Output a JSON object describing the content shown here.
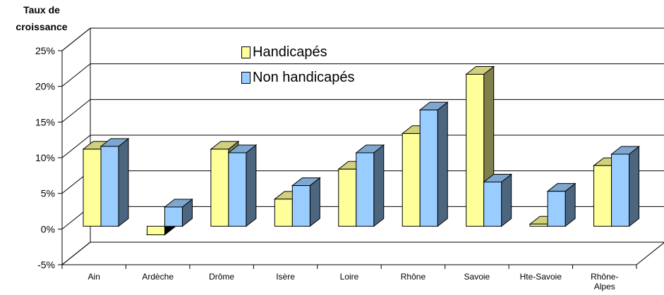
{
  "chart_data": {
    "type": "bar",
    "ylabel": "Taux de croissance",
    "ylim": [
      -5,
      25
    ],
    "yticks": [
      "-5%",
      "0%",
      "5%",
      "10%",
      "15%",
      "20%",
      "25%"
    ],
    "categories": [
      "Ain",
      "Ardèche",
      "Drôme",
      "Isère",
      "Loire",
      "Rhône",
      "Savoie",
      "Hte-Savoie",
      "Rhône-Alpes"
    ],
    "series": [
      {
        "name": "Handicapés",
        "values": [
          10.8,
          -1.2,
          10.8,
          3.8,
          8.0,
          13.0,
          21.3,
          0.3,
          8.5
        ],
        "color": "#ffff99"
      },
      {
        "name": "Non handicapés",
        "values": [
          11.2,
          2.7,
          10.3,
          5.7,
          10.3,
          16.3,
          6.2,
          4.9,
          10.1
        ],
        "color": "#99ccff"
      }
    ],
    "legend_position": "top-center",
    "grid": true,
    "style": "3d-clustered-column"
  }
}
